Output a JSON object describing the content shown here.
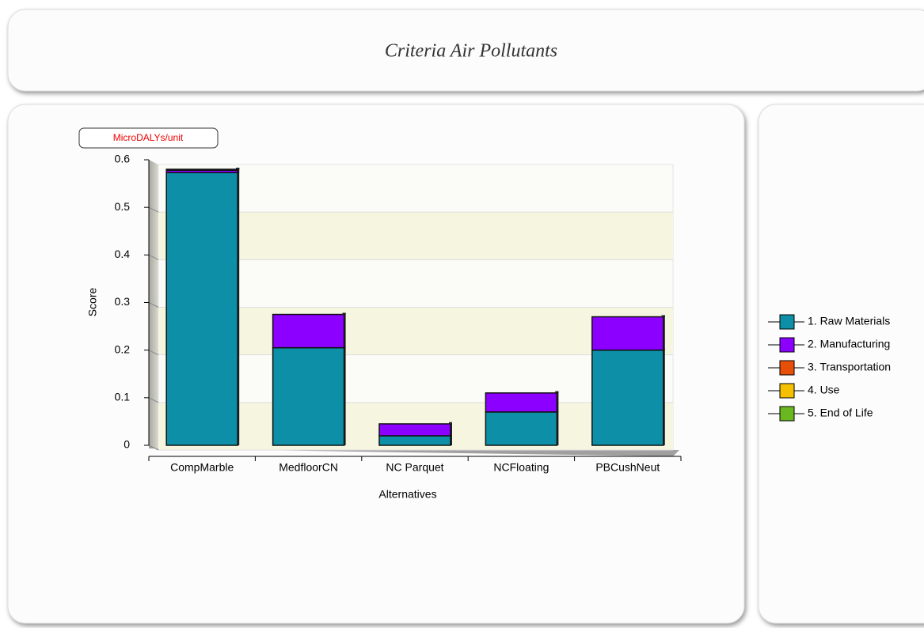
{
  "chart_data": {
    "type": "bar",
    "stacked": true,
    "title": "Criteria Air Pollutants",
    "unit": "MicroDALYs/unit",
    "ylabel": "Score",
    "xlabel": "Alternatives",
    "categories": [
      "CompMarble",
      "MedfloorCN",
      "NC Parquet",
      "NCFloating",
      "PBCushNeut"
    ],
    "series": [
      {
        "name": "1. Raw Materials",
        "color": "#0e8fa8",
        "values": [
          0.573,
          0.205,
          0.02,
          0.07,
          0.2
        ]
      },
      {
        "name": "2. Manufacturing",
        "color": "#8b00ff",
        "values": [
          0.005,
          0.07,
          0.025,
          0.04,
          0.07
        ]
      },
      {
        "name": "3. Transportation",
        "color": "#e8500a",
        "values": [
          0.002,
          0,
          0,
          0,
          0
        ]
      },
      {
        "name": "4. Use",
        "color": "#f5c000",
        "values": [
          0,
          0,
          0,
          0,
          0
        ]
      },
      {
        "name": "5. End of Life",
        "color": "#6ab820",
        "values": [
          0,
          0,
          0,
          0,
          0
        ]
      }
    ],
    "ylim": [
      0,
      0.6
    ],
    "yticks": [
      0,
      0.1,
      0.2,
      0.3,
      0.4,
      0.5,
      0.6
    ],
    "grid": true,
    "legend": "right"
  }
}
